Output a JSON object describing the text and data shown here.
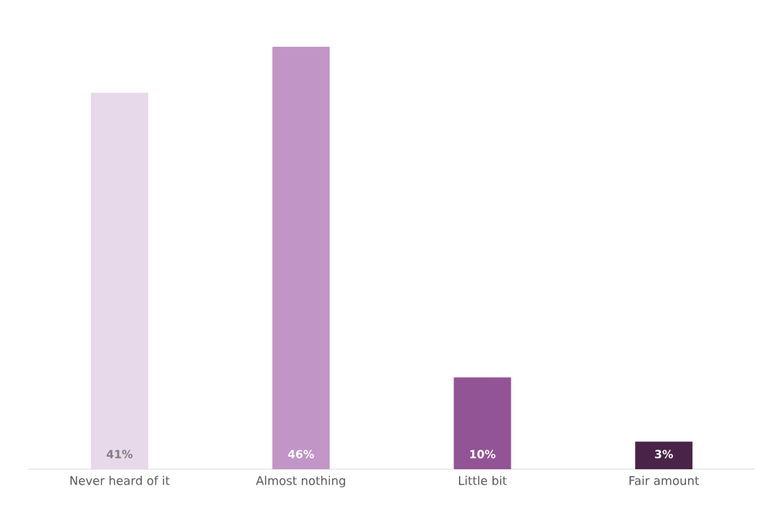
{
  "chart_data": {
    "type": "bar",
    "categories": [
      "Never heard of it",
      "Almost nothing",
      "Little bit",
      "Fair amount"
    ],
    "values": [
      41,
      46,
      10,
      3
    ],
    "value_labels": [
      "41%",
      "46%",
      "10%",
      "3%"
    ],
    "colors": [
      "#e8d9ea",
      "#c195c5",
      "#925495",
      "#4a2448"
    ]
  }
}
